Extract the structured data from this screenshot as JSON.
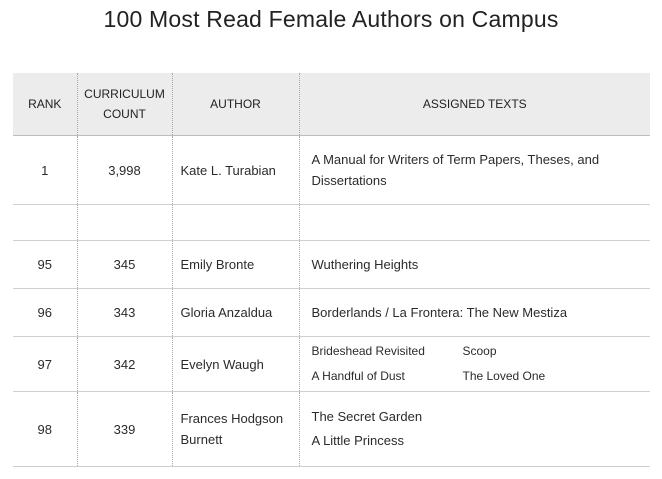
{
  "title": "100 Most Read Female Authors on Campus",
  "headers": {
    "rank": "RANK",
    "count_line1": "CURRICULUM",
    "count_line2": "COUNT",
    "author": "AUTHOR",
    "texts": "ASSIGNED TEXTS"
  },
  "rows": [
    {
      "rank": "1",
      "count": "3,998",
      "author": "Kate L. Turabian",
      "texts": [
        "A Manual for Writers of Term Papers, Theses, and Dissertations"
      ]
    },
    {
      "rank": "95",
      "count": "345",
      "author": "Emily Bronte",
      "texts": [
        "Wuthering Heights"
      ]
    },
    {
      "rank": "96",
      "count": "343",
      "author": "Gloria Anzaldua",
      "texts": [
        "Borderlands / La Frontera: The New Mestiza"
      ]
    },
    {
      "rank": "97",
      "count": "342",
      "author": "Evelyn Waugh",
      "texts": [
        "Brideshead Revisited",
        "Scoop",
        "A Handful of Dust",
        "The Loved One"
      ]
    },
    {
      "rank": "98",
      "count": "339",
      "author": "Frances Hodgson Burnett",
      "texts": [
        "The Secret Garden",
        "A Little Princess"
      ]
    }
  ]
}
